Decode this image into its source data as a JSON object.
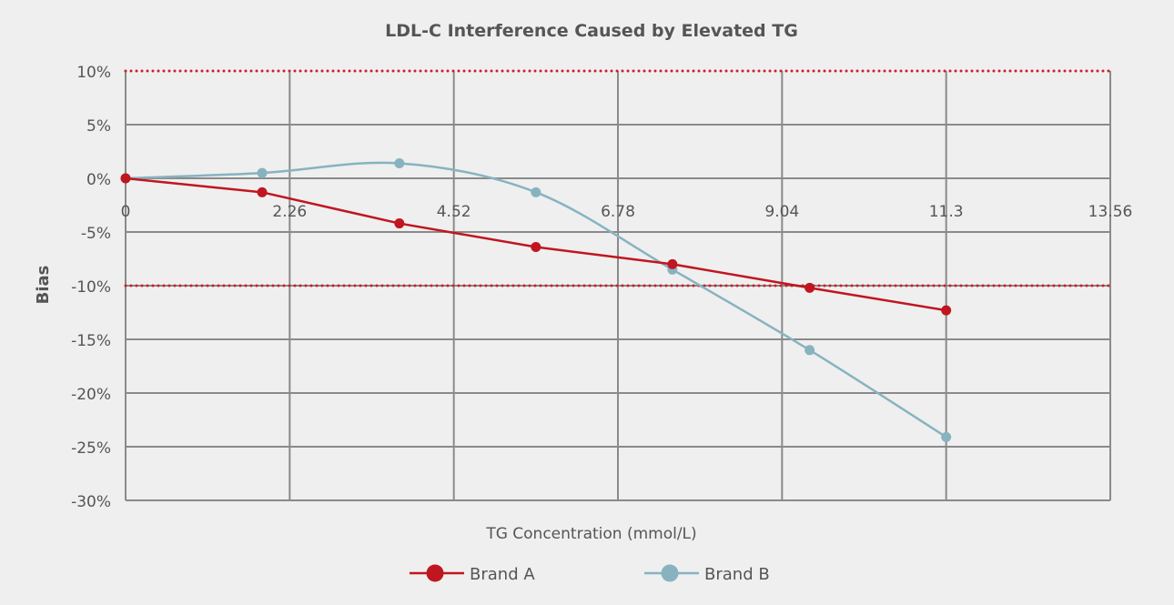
{
  "chart_data": {
    "type": "line",
    "title": "LDL-C Interference Caused by Elevated TG",
    "xlabel": "TG Concentration (mmol/L)",
    "ylabel": "Bias",
    "xlim": [
      0,
      13.56
    ],
    "ylim": [
      -30,
      10
    ],
    "x_ticks": [
      "0",
      "2.26",
      "4.52",
      "6.78",
      "9.04",
      "11.3",
      "13.56"
    ],
    "y_ticks": [
      "10%",
      "5%",
      "0%",
      "-5%",
      "-10%",
      "-15%",
      "-20%",
      "-25%",
      "-30%"
    ],
    "grid": true,
    "legend_position": "bottom",
    "reference_lines": [
      10,
      -10
    ],
    "reference_color": "#cc1f2a",
    "series": [
      {
        "name": "Brand A",
        "color": "#c0161f",
        "smooth": false,
        "x": [
          0,
          1.88,
          3.77,
          5.65,
          7.53,
          9.42,
          11.3
        ],
        "y": [
          0,
          -1.3,
          -4.2,
          -6.4,
          -8.0,
          -10.2,
          -12.3
        ]
      },
      {
        "name": "Brand B",
        "color": "#87b3c0",
        "smooth": true,
        "x": [
          0,
          1.88,
          3.77,
          5.65,
          7.53,
          9.42,
          11.3
        ],
        "y": [
          0,
          0.5,
          1.4,
          -1.3,
          -8.5,
          -16.0,
          -24.1
        ]
      }
    ]
  }
}
